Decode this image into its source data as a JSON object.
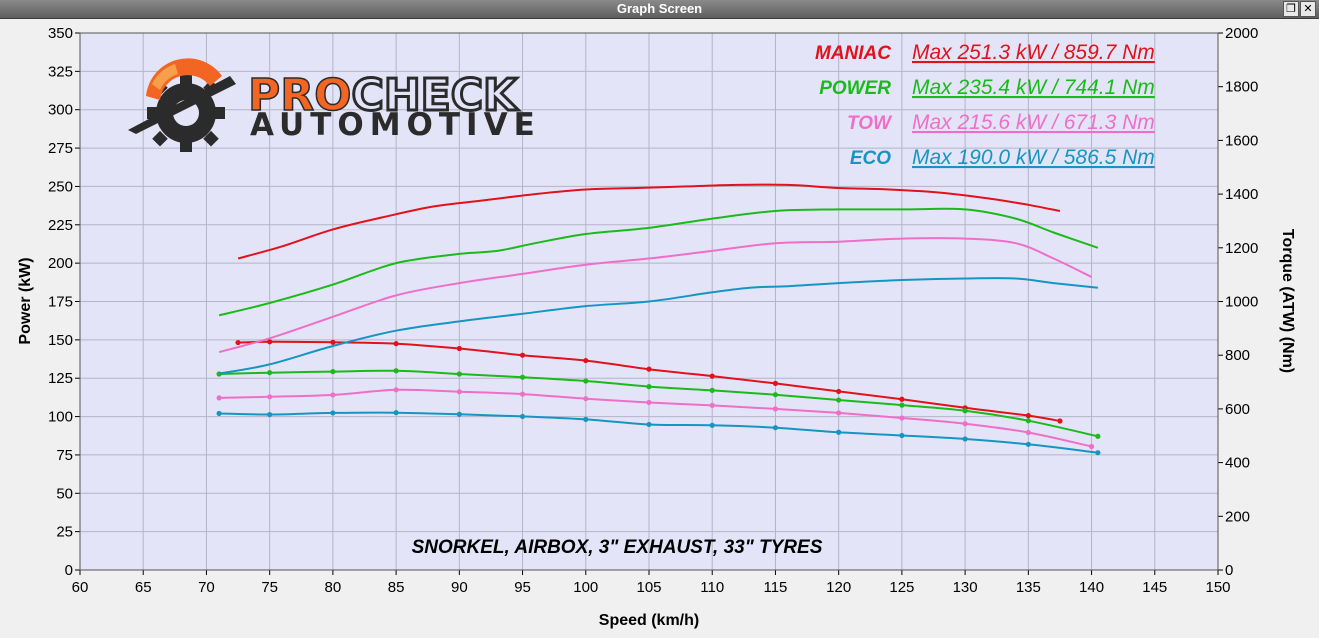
{
  "window": {
    "title": "Graph Screen",
    "restore_icon": "restore-icon",
    "close_icon": "close-icon"
  },
  "logo": {
    "line1a": "PRO",
    "line1b": "CHECK",
    "line2": "AUTOMOTIVE",
    "color_orange": "#f26522",
    "color_dark": "#2b2b2b"
  },
  "colors": {
    "plot_bg": "#e4e4f8",
    "grid": "#b4b4c8",
    "maniac": "#e0121b",
    "power": "#1aba1a",
    "tow": "#ef6fc8",
    "eco": "#1596c2"
  },
  "chart_data": {
    "type": "line",
    "xlabel": "Speed (km/h)",
    "ylabel": "Power (kW)",
    "y2label": "Torque (ATW) (Nm)",
    "xlim": [
      60,
      150
    ],
    "ylim": [
      0,
      350
    ],
    "y2lim": [
      0,
      2000
    ],
    "x_ticks": [
      "60",
      "65",
      "70",
      "75",
      "80",
      "85",
      "90",
      "95",
      "100",
      "105",
      "110",
      "115",
      "120",
      "125",
      "130",
      "135",
      "140",
      "145",
      "150"
    ],
    "y_ticks": [
      "0",
      "25",
      "50",
      "75",
      "100",
      "125",
      "150",
      "175",
      "200",
      "225",
      "250",
      "275",
      "300",
      "325",
      "350"
    ],
    "y2_ticks": [
      "0",
      "200",
      "400",
      "600",
      "800",
      "1000",
      "1200",
      "1400",
      "1600",
      "1800",
      "2000"
    ],
    "grid": true,
    "annotation": "SNORKEL, AIRBOX, 3\" EXHAUST, 33\" TYRES",
    "legend": [
      {
        "name": "MANIAC",
        "text": "Max 251.3 kW  / 859.7 Nm",
        "color": "#e0121b"
      },
      {
        "name": "POWER",
        "text": "Max 235.4 kW  / 744.1 Nm",
        "color": "#1aba1a"
      },
      {
        "name": "TOW",
        "text": "Max 215.6 kW  / 671.3 Nm",
        "color": "#ef6fc8"
      },
      {
        "name": "ECO",
        "text": "Max 190.0 kW  / 586.5 Nm",
        "color": "#1596c2"
      }
    ],
    "series": [
      {
        "name": "MANIAC",
        "color": "#e0121b",
        "power_x": [
          72.5,
          76,
          80,
          84,
          88,
          92,
          96,
          100,
          104,
          108,
          112,
          116,
          120,
          124,
          128,
          132,
          135,
          137.5
        ],
        "power_kW": [
          203,
          211,
          222,
          230,
          237,
          241,
          245,
          248,
          249,
          250,
          251,
          251,
          249,
          248,
          246,
          242,
          238,
          234
        ],
        "torque_x": [
          72.5,
          75,
          80,
          85,
          90,
          95,
          100,
          105,
          110,
          115,
          120,
          125,
          130,
          135,
          137.5
        ],
        "torque_Nm": [
          847,
          850,
          848,
          843,
          825,
          800,
          780,
          748,
          722,
          695,
          665,
          636,
          604,
          575,
          555
        ]
      },
      {
        "name": "POWER",
        "color": "#1aba1a",
        "power_x": [
          71,
          75,
          80,
          85,
          90,
          93,
          96,
          100,
          105,
          110,
          115,
          120,
          125,
          130,
          134,
          137,
          140.5
        ],
        "power_kW": [
          166,
          174,
          186,
          200,
          206,
          208,
          213,
          219,
          223,
          229,
          234,
          235,
          235,
          235,
          229,
          220,
          210
        ],
        "torque_x": [
          71,
          75,
          80,
          85,
          90,
          95,
          100,
          105,
          110,
          115,
          120,
          125,
          130,
          135,
          140.5
        ],
        "torque_Nm": [
          730,
          735,
          739,
          742,
          730,
          718,
          704,
          683,
          669,
          653,
          633,
          614,
          593,
          556,
          498
        ]
      },
      {
        "name": "TOW",
        "color": "#ef6fc8",
        "power_x": [
          71,
          75,
          80,
          85,
          90,
          95,
          100,
          105,
          110,
          115,
          120,
          125,
          130,
          134,
          137,
          140
        ],
        "power_kW": [
          142,
          151,
          165,
          179,
          187,
          193,
          199,
          203,
          208,
          213,
          214,
          216,
          216,
          213,
          203,
          191
        ],
        "torque_x": [
          71,
          75,
          80,
          85,
          90,
          95,
          100,
          105,
          110,
          115,
          120,
          125,
          130,
          135,
          140
        ],
        "torque_Nm": [
          641,
          645,
          652,
          671,
          664,
          655,
          638,
          624,
          613,
          600,
          585,
          566,
          545,
          512,
          460
        ]
      },
      {
        "name": "ECO",
        "color": "#1596c2",
        "power_x": [
          71,
          75,
          80,
          85,
          90,
          95,
          100,
          105,
          110,
          113,
          116,
          120,
          125,
          130,
          134,
          137,
          140.5
        ],
        "power_kW": [
          128,
          134,
          146,
          156,
          162,
          167,
          172,
          175,
          181,
          184,
          185,
          187,
          189,
          190,
          190,
          187,
          184
        ],
        "torque_x": [
          71,
          75,
          80,
          85,
          90,
          95,
          100,
          105,
          110,
          115,
          120,
          125,
          130,
          135,
          140.5
        ],
        "torque_Nm": [
          583,
          579,
          585,
          586,
          580,
          572,
          561,
          542,
          539,
          530,
          513,
          501,
          488,
          468,
          437
        ]
      }
    ]
  }
}
